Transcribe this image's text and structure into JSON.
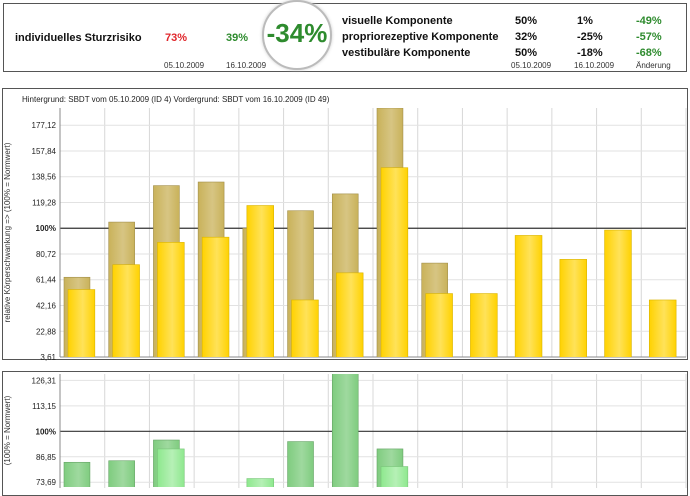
{
  "summary": {
    "risk_label": "individuelles Sturzrisiko",
    "risk_before": "73%",
    "risk_after": "39%",
    "risk_before_date": "05.10.2009",
    "risk_after_date": "16.10.2009",
    "risk_change": "-34%",
    "risk_before_color": "#e0262b",
    "risk_after_color": "#2e8b2e",
    "components": [
      {
        "label": "visuelle Komponente",
        "before": "50%",
        "after": "1%",
        "change": "-49%"
      },
      {
        "label": "propriorezeptive Komponente",
        "before": "32%",
        "after": "-25%",
        "change": "-57%"
      },
      {
        "label": "vestibuläre Komponente",
        "before": "50%",
        "after": "-18%",
        "change": "-68%"
      }
    ],
    "comp_before_date": "05.10.2009",
    "comp_after_date": "16.10.2009",
    "comp_change_label": "Änderung"
  },
  "chart_data": [
    {
      "type": "bar",
      "caption": "Hintergrund: SBDT vom 05.10.2009 (ID 4)    Vordergrund: SBDT vom 16.10.2009 (ID 49)",
      "ylabel": "relative Körperschwankung => (100% = Normwert)",
      "ytick_labels": [
        "3,61",
        "22,88",
        "42,16",
        "61,44",
        "80,72",
        "100%",
        "119,28",
        "138,56",
        "157,84",
        "177,12"
      ],
      "ytick_values": [
        3.61,
        22.88,
        42.16,
        61.44,
        80.72,
        100,
        119.28,
        138.56,
        157.84,
        177.12
      ],
      "ylim": [
        3.61,
        190
      ],
      "reference": 100,
      "colors": {
        "background": "#c9b25a",
        "foreground": "#ffd200"
      },
      "series": [
        {
          "name": "Hintergrund",
          "values": [
            63.3,
            104.6,
            131.9,
            134.6,
            100,
            113.1,
            125.7,
            190,
            73.9,
            null,
            null,
            null,
            null,
            null
          ]
        },
        {
          "name": "Vordergrund",
          "values": [
            54.1,
            72.7,
            89.4,
            93.3,
            117,
            46.3,
            66.6,
            145.3,
            51.1,
            51.1,
            94.6,
            76.7,
            98.6,
            46.3
          ]
        }
      ]
    },
    {
      "type": "bar",
      "ylabel": "(100% = Normwert)",
      "ytick_labels": [
        "73,69",
        "86,85",
        "100%",
        "113,15",
        "126,31"
      ],
      "ytick_values": [
        73.69,
        86.85,
        100,
        113.15,
        126.31
      ],
      "ylim": [
        67.1,
        129.6
      ],
      "reference": 100,
      "colors": {
        "background": "#7fcc7f",
        "foreground": "#8ee88e"
      },
      "series": [
        {
          "name": "Hintergrund",
          "values": [
            84,
            84.8,
            95.5,
            null,
            null,
            94.7,
            131,
            90.9,
            null,
            null,
            null,
            null,
            null,
            null
          ]
        },
        {
          "name": "Vordergrund",
          "values": [
            null,
            null,
            90.9,
            null,
            75.6,
            null,
            null,
            81.8,
            null,
            null,
            null,
            null,
            null,
            null
          ]
        }
      ]
    }
  ]
}
